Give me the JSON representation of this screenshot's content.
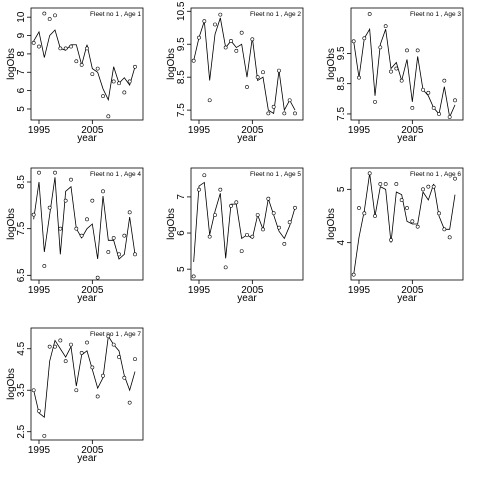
{
  "chart_data": [
    {
      "type": "line",
      "title": "Fleet no 1 , Age 1",
      "xlabel": "year",
      "ylabel": "logObs",
      "xlim": [
        1993.5,
        2014.5
      ],
      "ylim": [
        4.4,
        10.5
      ],
      "xticks": [
        1995,
        2005
      ],
      "yticks": [
        5,
        6,
        7,
        8,
        9,
        10
      ],
      "x": [
        1994,
        1995,
        1996,
        1997,
        1998,
        1999,
        2000,
        2001,
        2002,
        2003,
        2004,
        2005,
        2006,
        2007,
        2008,
        2009,
        2010,
        2011,
        2012,
        2013
      ],
      "series": [
        {
          "kind": "points",
          "values": [
            8.6,
            8.4,
            10.2,
            9.9,
            10.1,
            8.3,
            8.3,
            8.4,
            7.6,
            7.4,
            8.3,
            6.9,
            7.2,
            5.7,
            4.6,
            6.5,
            6.4,
            5.9,
            6.5,
            7.3
          ]
        },
        {
          "kind": "line",
          "values": [
            8.7,
            9.2,
            7.8,
            9.0,
            9.3,
            8.3,
            8.2,
            8.5,
            8.5,
            7.4,
            8.5,
            7.2,
            7.0,
            6.1,
            5.5,
            7.3,
            6.4,
            6.7,
            6.3,
            7.3
          ]
        }
      ]
    },
    {
      "type": "line",
      "title": "Fleet no 1 , Age 2",
      "xlabel": "year",
      "ylabel": "logObs",
      "xlim": [
        1993.5,
        2014.5
      ],
      "ylim": [
        7.2,
        10.6
      ],
      "xticks": [
        1995,
        2005
      ],
      "yticks": [
        7.5,
        8.5,
        9.5,
        10.5
      ],
      "x": [
        1994,
        1995,
        1996,
        1997,
        1998,
        1999,
        2000,
        2001,
        2002,
        2003,
        2004,
        2005,
        2006,
        2007,
        2008,
        2009,
        2010,
        2011,
        2012,
        2013
      ],
      "series": [
        {
          "kind": "points",
          "values": [
            9.0,
            9.7,
            10.2,
            7.8,
            10.1,
            10.4,
            9.4,
            9.6,
            9.3,
            9.85,
            8.2,
            9.65,
            8.5,
            8.65,
            7.4,
            7.6,
            8.7,
            7.4,
            7.8,
            7.4
          ]
        },
        {
          "kind": "line",
          "values": [
            9.0,
            9.7,
            10.2,
            8.4,
            9.8,
            10.3,
            9.4,
            9.6,
            9.4,
            9.5,
            8.5,
            9.7,
            8.4,
            8.5,
            7.5,
            7.4,
            8.7,
            7.5,
            7.8,
            7.5
          ]
        }
      ]
    },
    {
      "type": "line",
      "title": "Fleet no 1 , Age 3",
      "xlabel": "year",
      "ylabel": "logObs",
      "xlim": [
        1993.5,
        2014.5
      ],
      "ylim": [
        7.3,
        11.0
      ],
      "xticks": [
        1995,
        2005
      ],
      "yticks": [
        7.5,
        8.5,
        9.5
      ],
      "x": [
        1994,
        1995,
        1996,
        1997,
        1998,
        1999,
        2000,
        2001,
        2002,
        2003,
        2004,
        2005,
        2006,
        2007,
        2008,
        2009,
        2010,
        2011,
        2012,
        2013
      ],
      "series": [
        {
          "kind": "points",
          "values": [
            9.9,
            8.7,
            10.0,
            10.8,
            7.9,
            9.7,
            10.4,
            8.9,
            9.0,
            8.6,
            9.6,
            7.7,
            9.6,
            8.3,
            8.2,
            7.7,
            7.5,
            8.6,
            7.4,
            7.95
          ]
        },
        {
          "kind": "line",
          "values": [
            9.9,
            8.7,
            10.0,
            10.3,
            8.1,
            9.8,
            10.3,
            9.0,
            9.2,
            8.6,
            9.3,
            7.9,
            9.4,
            8.3,
            8.1,
            7.7,
            7.5,
            8.4,
            7.4,
            7.8
          ]
        }
      ]
    },
    {
      "type": "line",
      "title": "Fleet no 1 , Age 4",
      "xlabel": "year",
      "ylabel": "logObs",
      "xlim": [
        1993.5,
        2014.5
      ],
      "ylim": [
        6.4,
        8.8
      ],
      "xticks": [
        1995,
        2005
      ],
      "yticks": [
        6.5,
        7.5,
        8.5
      ],
      "x": [
        1994,
        1995,
        1996,
        1997,
        1998,
        1999,
        2000,
        2001,
        2002,
        2003,
        2004,
        2005,
        2006,
        2007,
        2008,
        2009,
        2010,
        2011,
        2012,
        2013
      ],
      "series": [
        {
          "kind": "points",
          "values": [
            7.8,
            8.7,
            6.7,
            7.95,
            8.7,
            7.5,
            8.1,
            8.55,
            7.5,
            7.35,
            7.7,
            8.1,
            6.45,
            8.3,
            7.0,
            7.3,
            6.95,
            7.35,
            7.85,
            6.95
          ]
        },
        {
          "kind": "line",
          "values": [
            7.7,
            8.5,
            7.0,
            7.8,
            8.6,
            6.95,
            8.3,
            8.4,
            7.5,
            7.3,
            7.5,
            7.6,
            6.85,
            8.2,
            7.25,
            7.25,
            6.85,
            6.95,
            7.75,
            6.95
          ]
        }
      ]
    },
    {
      "type": "line",
      "title": "Fleet no 1 , Age 5",
      "xlabel": "year",
      "ylabel": "logObs",
      "xlim": [
        1993.5,
        2014.5
      ],
      "ylim": [
        4.7,
        7.8
      ],
      "xticks": [
        1995,
        2005
      ],
      "yticks": [
        5.0,
        6.0,
        7.0
      ],
      "x": [
        1994,
        1995,
        1996,
        1997,
        1998,
        1999,
        2000,
        2001,
        2002,
        2003,
        2004,
        2005,
        2006,
        2007,
        2008,
        2009,
        2010,
        2011,
        2012,
        2013
      ],
      "series": [
        {
          "kind": "points",
          "values": [
            4.8,
            7.2,
            7.6,
            5.9,
            6.5,
            7.2,
            5.05,
            6.75,
            6.85,
            5.5,
            5.95,
            5.9,
            6.5,
            6.1,
            6.95,
            6.55,
            6.15,
            5.7,
            6.3,
            6.7
          ]
        },
        {
          "kind": "line",
          "values": [
            5.2,
            7.3,
            7.4,
            5.95,
            6.6,
            7.1,
            5.3,
            6.8,
            6.8,
            5.85,
            5.95,
            5.85,
            6.5,
            6.1,
            6.95,
            6.5,
            6.05,
            5.85,
            6.2,
            6.7
          ]
        }
      ]
    },
    {
      "type": "line",
      "title": "Fleet no 1 , Age 6",
      "xlabel": "year",
      "ylabel": "logObs",
      "xlim": [
        1993.5,
        2014.5
      ],
      "ylim": [
        3.3,
        5.4
      ],
      "xticks": [
        1995,
        2005
      ],
      "yticks": [
        4.0,
        5.0
      ],
      "x": [
        1994,
        1995,
        1996,
        1997,
        1998,
        1999,
        2000,
        2001,
        2002,
        2003,
        2004,
        2005,
        2006,
        2007,
        2008,
        2009,
        2010,
        2011,
        2012,
        2013
      ],
      "series": [
        {
          "kind": "points",
          "values": [
            3.4,
            4.65,
            4.55,
            5.3,
            4.5,
            5.1,
            5.1,
            4.05,
            5.1,
            4.8,
            4.65,
            4.4,
            4.3,
            5.0,
            5.05,
            5.05,
            4.55,
            4.25,
            4.1,
            5.2
          ]
        },
        {
          "kind": "line",
          "values": [
            3.4,
            4.1,
            4.6,
            5.3,
            4.5,
            5.05,
            5.0,
            4.0,
            4.95,
            4.9,
            4.4,
            4.35,
            4.35,
            4.95,
            4.8,
            5.1,
            4.5,
            4.25,
            4.25,
            4.9
          ]
        }
      ]
    },
    {
      "type": "line",
      "title": "Fleet no 1 , Age 7",
      "xlabel": "year",
      "ylabel": "logObs",
      "xlim": [
        1993.5,
        2014.5
      ],
      "ylim": [
        2.3,
        5.0
      ],
      "xticks": [
        1995,
        2005
      ],
      "yticks": [
        2.5,
        3.5,
        4.5
      ],
      "x": [
        1994,
        1995,
        1996,
        1997,
        1998,
        1999,
        2000,
        2001,
        2002,
        2003,
        2004,
        2005,
        2006,
        2007,
        2008,
        2009,
        2010,
        2011,
        2012,
        2013
      ],
      "series": [
        {
          "kind": "points",
          "values": [
            3.5,
            3.0,
            2.4,
            4.55,
            4.55,
            4.7,
            4.2,
            4.6,
            3.5,
            4.4,
            4.65,
            4.05,
            3.35,
            3.85,
            4.8,
            4.6,
            4.3,
            3.8,
            3.2,
            4.25
          ]
        },
        {
          "kind": "line",
          "values": [
            3.5,
            2.95,
            2.85,
            4.2,
            4.7,
            4.5,
            4.3,
            4.55,
            3.6,
            4.35,
            4.45,
            4.0,
            3.55,
            3.8,
            4.8,
            4.6,
            4.45,
            3.85,
            3.5,
            3.95
          ]
        }
      ]
    }
  ]
}
